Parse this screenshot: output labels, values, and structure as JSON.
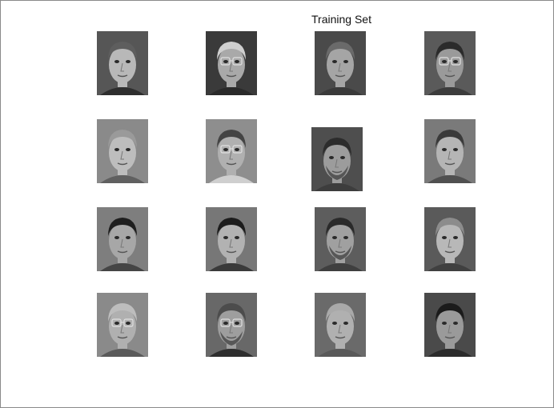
{
  "figure": {
    "title": "Training Set",
    "colors": {
      "background": "#ffffff",
      "border": "#8a8a8a"
    },
    "faces": [
      {
        "bg": "#565656",
        "skin": "#b8b8b8",
        "hair": "#5e5e5e",
        "shirt": "#2e2e2e",
        "glasses": false,
        "beard": false
      },
      {
        "bg": "#3a3a3a",
        "skin": "#a9a9a9",
        "hair": "#cfcfcf",
        "shirt": "#2a2a2a",
        "glasses": true,
        "beard": false
      },
      {
        "bg": "#4a4a4a",
        "skin": "#a5a5a5",
        "hair": "#6a6a6a",
        "shirt": "#3a3a3a",
        "glasses": false,
        "beard": false
      },
      {
        "bg": "#5a5a5a",
        "skin": "#9a9a9a",
        "hair": "#2b2b2b",
        "shirt": "#3c3c3c",
        "glasses": true,
        "beard": false
      },
      {
        "bg": "#8a8a8a",
        "skin": "#bdbdbd",
        "hair": "#9a9a9a",
        "shirt": "#606060",
        "glasses": false,
        "beard": false
      },
      {
        "bg": "#8e8e8e",
        "skin": "#b0b0b0",
        "hair": "#444444",
        "shirt": "#cfcfcf",
        "glasses": true,
        "beard": false
      },
      {
        "bg": "#4e4e4e",
        "skin": "#9c9c9c",
        "hair": "#2c2c2c",
        "shirt": "#3d3d3d",
        "glasses": false,
        "beard": true
      },
      {
        "bg": "#7a7a7a",
        "skin": "#b5b5b5",
        "hair": "#3a3a3a",
        "shirt": "#505050",
        "glasses": false,
        "beard": false
      },
      {
        "bg": "#7e7e7e",
        "skin": "#a7a7a7",
        "hair": "#1e1e1e",
        "shirt": "#454545",
        "glasses": false,
        "beard": false
      },
      {
        "bg": "#777777",
        "skin": "#b2b2b2",
        "hair": "#1c1c1c",
        "shirt": "#3a3a3a",
        "glasses": false,
        "beard": false
      },
      {
        "bg": "#5d5d5d",
        "skin": "#a0a0a0",
        "hair": "#2a2a2a",
        "shirt": "#3f3f3f",
        "glasses": false,
        "beard": true
      },
      {
        "bg": "#5a5a5a",
        "skin": "#b8b8b8",
        "hair": "#8c8c8c",
        "shirt": "#404040",
        "glasses": false,
        "beard": false
      },
      {
        "bg": "#8a8a8a",
        "skin": "#b0b0b0",
        "hair": "#bdbdbd",
        "shirt": "#5a5a5a",
        "glasses": true,
        "beard": false
      },
      {
        "bg": "#686868",
        "skin": "#9e9e9e",
        "hair": "#4c4c4c",
        "shirt": "#2e2e2e",
        "glasses": true,
        "beard": true
      },
      {
        "bg": "#6a6a6a",
        "skin": "#b0b0b0",
        "hair": "#a9a9a9",
        "shirt": "#595959",
        "glasses": false,
        "beard": false
      },
      {
        "bg": "#4a4a4a",
        "skin": "#9a9a9a",
        "hair": "#1b1b1b",
        "shirt": "#2b2b2b",
        "glasses": false,
        "beard": false
      }
    ]
  }
}
